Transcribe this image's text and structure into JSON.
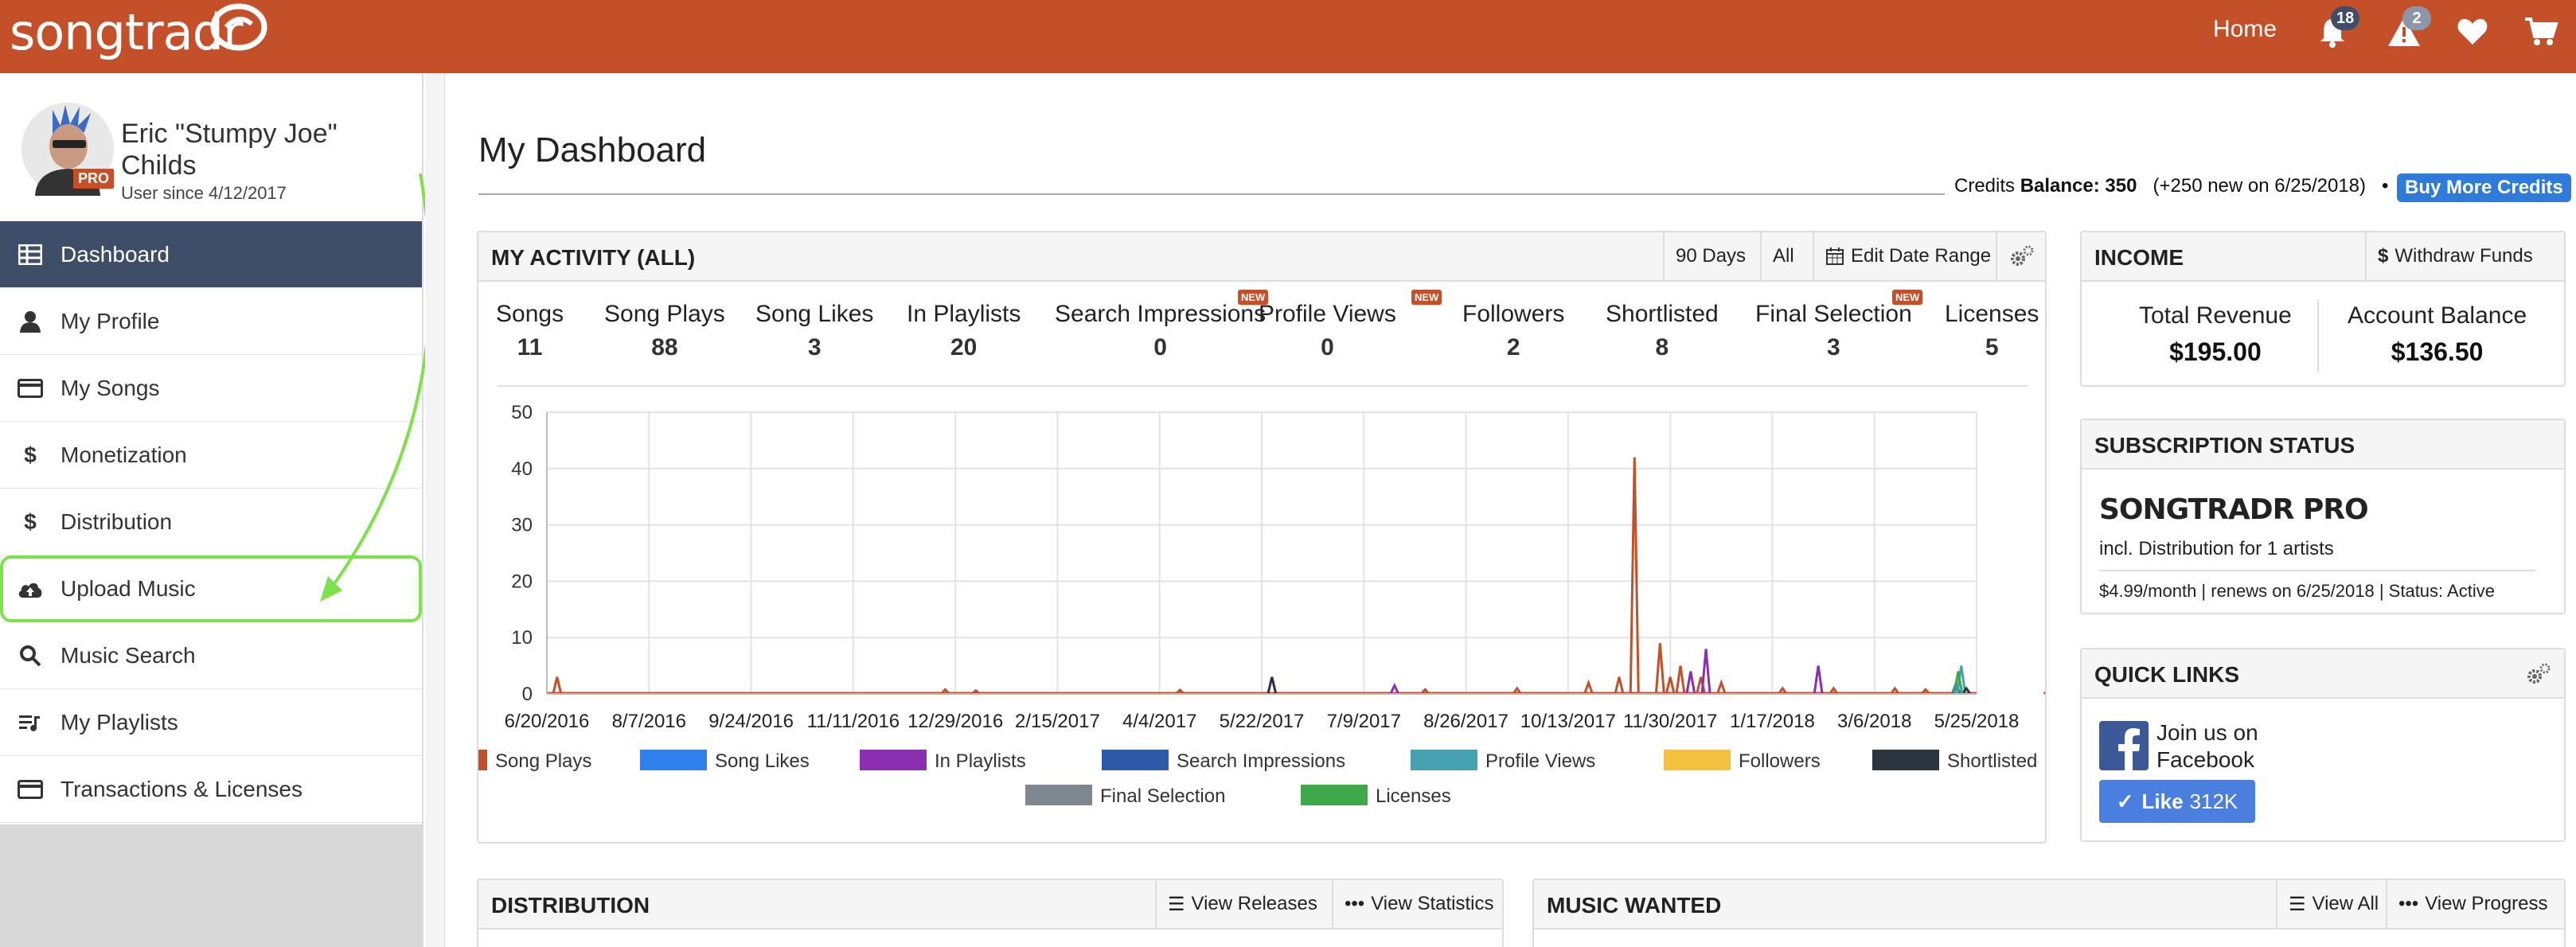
{
  "topbar": {
    "logo_text": "songtradr",
    "home_label": "Home",
    "notifications_count": "18",
    "alerts_count": "2"
  },
  "profile": {
    "name": "Eric \"Stumpy Joe\" Childs",
    "pro_label": "PRO",
    "since": "User since 4/12/2017"
  },
  "sidebar": {
    "items": [
      {
        "label": "Dashboard",
        "icon": "grid-icon"
      },
      {
        "label": "My Profile",
        "icon": "user-icon"
      },
      {
        "label": "My Songs",
        "icon": "card-icon"
      },
      {
        "label": "Monetization",
        "icon": "dollar-icon"
      },
      {
        "label": "Distribution",
        "icon": "dollar-icon"
      },
      {
        "label": "Upload Music",
        "icon": "cloud-upload-icon"
      },
      {
        "label": "Music Search",
        "icon": "search-icon"
      },
      {
        "label": "My Playlists",
        "icon": "playlist-icon"
      },
      {
        "label": "Transactions & Licenses",
        "icon": "card-icon"
      }
    ]
  },
  "page": {
    "title": "My Dashboard",
    "credits_label": "Credits",
    "balance_label": "Balance:",
    "balance_value": "350",
    "credits_note": "(+250 new on 6/25/2018)",
    "separator": "•",
    "buy_label": "Buy More Credits"
  },
  "activity": {
    "title": "MY ACTIVITY (ALL)",
    "btn_90": "90 Days",
    "btn_all": "All",
    "btn_edit": "Edit Date Range",
    "new_label": "NEW",
    "stats": [
      {
        "label": "Songs",
        "value": "11"
      },
      {
        "label": "Song Plays",
        "value": "88"
      },
      {
        "label": "Song Likes",
        "value": "3"
      },
      {
        "label": "In Playlists",
        "value": "20"
      },
      {
        "label": "Search Impressions",
        "value": "0"
      },
      {
        "label": "Profile Views",
        "value": "0"
      },
      {
        "label": "Followers",
        "value": "2"
      },
      {
        "label": "Shortlisted",
        "value": "8"
      },
      {
        "label": "Final Selection",
        "value": "3"
      },
      {
        "label": "Licenses",
        "value": "5"
      }
    ]
  },
  "chart_data": {
    "type": "line",
    "title": "",
    "xlabel": "",
    "ylabel": "",
    "ylim": [
      0,
      50
    ],
    "y_ticks": [
      "0",
      "10",
      "20",
      "30",
      "40",
      "50"
    ],
    "x_ticks": [
      "6/20/2016",
      "8/7/2016",
      "9/24/2016",
      "11/11/2016",
      "12/29/2016",
      "2/15/2017",
      "4/4/2017",
      "5/22/2017",
      "7/9/2017",
      "8/26/2017",
      "10/13/2017",
      "11/30/2017",
      "1/17/2018",
      "3/6/2018",
      "5/25/2018"
    ],
    "grid": true,
    "legend_position": "bottom",
    "series": [
      {
        "name": "Song Plays",
        "color": "#c4502a",
        "spikes": [
          [
            0.1,
            3
          ],
          [
            3.9,
            0.8
          ],
          [
            4.2,
            0.6
          ],
          [
            6.2,
            0.7
          ],
          [
            8.6,
            0.8
          ],
          [
            9.5,
            1
          ],
          [
            10.2,
            2
          ],
          [
            10.5,
            3
          ],
          [
            10.65,
            42
          ],
          [
            10.9,
            9
          ],
          [
            11.0,
            3
          ],
          [
            11.1,
            5
          ],
          [
            11.3,
            3
          ],
          [
            11.5,
            2
          ],
          [
            12.1,
            1
          ],
          [
            12.6,
            1
          ],
          [
            13.2,
            1
          ],
          [
            13.5,
            0.8
          ],
          [
            14.7,
            0.8
          ]
        ]
      },
      {
        "name": "Song Likes",
        "color": "#2f80ed",
        "spikes": [
          [
            13.8,
            2
          ]
        ]
      },
      {
        "name": "In Playlists",
        "color": "#8a2fb0",
        "spikes": [
          [
            8.3,
            1.5
          ],
          [
            11.2,
            4
          ],
          [
            11.35,
            8
          ],
          [
            12.45,
            5
          ],
          [
            13.8,
            1
          ]
        ]
      },
      {
        "name": "Search Impressions",
        "color": "#2d5aa6",
        "spikes": []
      },
      {
        "name": "Profile Views",
        "color": "#45a0b0",
        "spikes": [
          [
            13.85,
            5
          ]
        ]
      },
      {
        "name": "Followers",
        "color": "#f3c03f",
        "spikes": []
      },
      {
        "name": "Shortlisted",
        "color": "#2c3440",
        "spikes": [
          [
            7.1,
            3
          ],
          [
            13.9,
            1
          ]
        ]
      },
      {
        "name": "Final Selection",
        "color": "#7f878f",
        "spikes": []
      },
      {
        "name": "Licenses",
        "color": "#3fa84a",
        "spikes": [
          [
            13.82,
            4
          ]
        ]
      }
    ]
  },
  "income": {
    "title": "INCOME",
    "withdraw_label": "Withdraw Funds",
    "total_label": "Total Revenue",
    "total_value": "$195.00",
    "balance_label": "Account Balance",
    "balance_value": "$136.50"
  },
  "subscription": {
    "title": "SUBSCRIPTION STATUS",
    "plan": "SONGTRADR PRO",
    "includes": "incl. Distribution for 1 artists",
    "renewal": "$4.99/month | renews on 6/25/2018 | Status: Active"
  },
  "quicklinks": {
    "title": "QUICK LINKS",
    "facebook_text": "Join us on Facebook",
    "like_label": "Like",
    "like_count": "312K"
  },
  "distribution": {
    "title": "DISTRIBUTION",
    "view_releases": "View Releases",
    "view_statistics": "View Statistics"
  },
  "music_wanted": {
    "title": "MUSIC WANTED",
    "view_all": "View All",
    "view_progress": "View Progress"
  }
}
